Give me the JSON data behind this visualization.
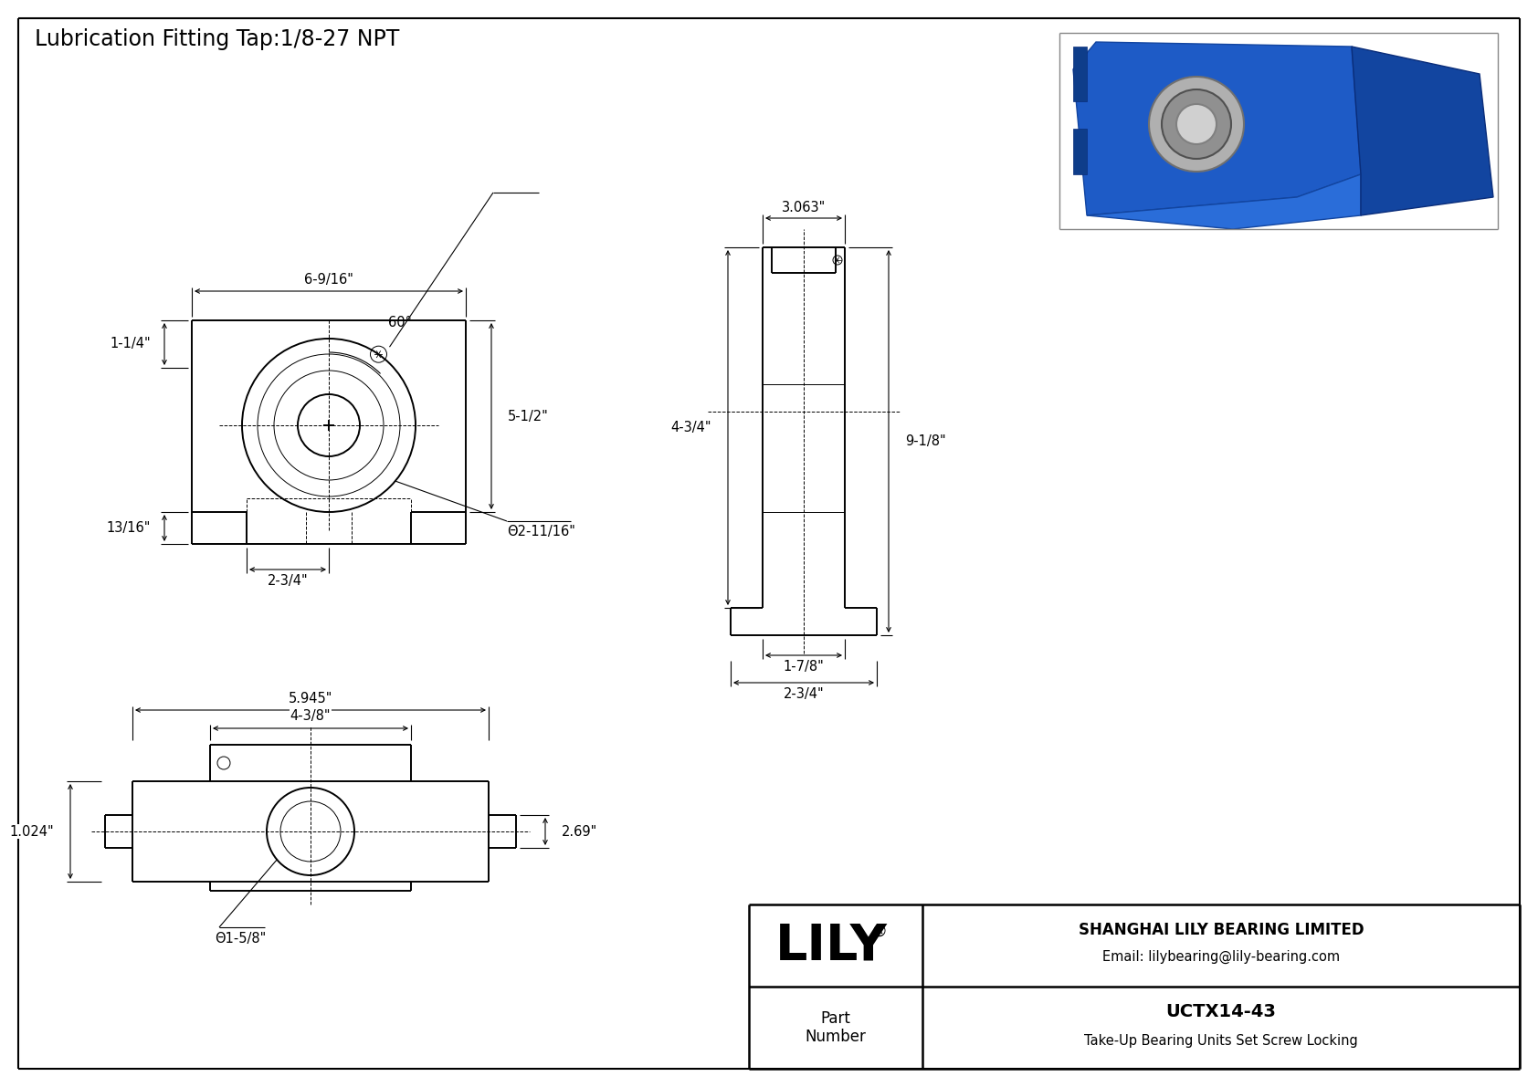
{
  "title": "Lubrication Fitting Tap:1/8-27 NPT",
  "title_fontsize": 17,
  "dim_fontsize": 10.5,
  "company_name": "SHANGHAI LILY BEARING LIMITED",
  "company_email": "Email: lilybearing@lily-bearing.com",
  "part_label": "Part\nNumber",
  "part_number": "UCTX14-43",
  "part_desc": "Take-Up Bearing Units Set Screw Locking",
  "dims_front": {
    "width_top": "6-9/16\"",
    "angle": "60°",
    "height_right": "5-1/2\"",
    "height_left": "1-1/4\"",
    "height_bottom_left": "13/16\"",
    "width_bottom_center": "2-3/4\"",
    "diameter": "Θ2-11/16\""
  },
  "dims_side": {
    "width_top": "3.063\"",
    "height_upper": "4-3/4\"",
    "height_total": "9-1/8\"",
    "width_inner": "1-7/8\"",
    "width_outer": "2-3/4\""
  },
  "dims_bottom": {
    "width_outer": "5.945\"",
    "width_inner": "4-3/8\"",
    "height": "2.69\"",
    "left_height": "1.024\"",
    "diameter": "Θ1-5/8\""
  }
}
